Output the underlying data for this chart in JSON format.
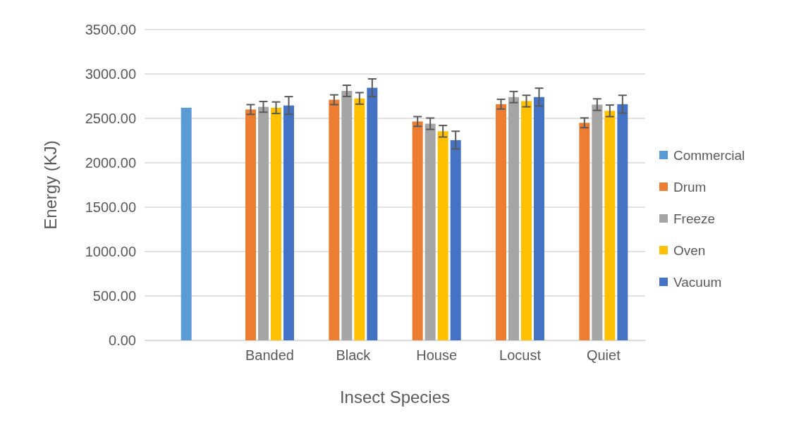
{
  "chart_data": {
    "type": "bar",
    "xlabel": "Insect Species",
    "ylabel": "Energy (KJ)",
    "categories": [
      null,
      "Banded",
      "Black",
      "House",
      "Locust",
      "Quiet"
    ],
    "series": [
      {
        "name": "Commercial",
        "color": "#5b9bd5",
        "values": [
          2620,
          null,
          null,
          null,
          null,
          null
        ]
      },
      {
        "name": "Drum",
        "color": "#ed7d31",
        "values": [
          null,
          2600,
          2710,
          2465,
          2660,
          2450
        ],
        "errors": [
          null,
          55,
          55,
          55,
          55,
          55
        ]
      },
      {
        "name": "Freeze",
        "color": "#a5a5a5",
        "values": [
          null,
          2630,
          2810,
          2440,
          2740,
          2655
        ],
        "errors": [
          null,
          60,
          63,
          64,
          63,
          65
        ]
      },
      {
        "name": "Oven",
        "color": "#ffc000",
        "values": [
          null,
          2620,
          2725,
          2355,
          2695,
          2585
        ],
        "errors": [
          null,
          65,
          65,
          65,
          65,
          65
        ]
      },
      {
        "name": "Vacuum",
        "color": "#4472c4",
        "values": [
          null,
          2645,
          2845,
          2255,
          2740,
          2660
        ],
        "errors": [
          null,
          100,
          100,
          100,
          100,
          100
        ]
      }
    ],
    "ylim": [
      0,
      3500
    ],
    "yticks": [
      {
        "value": 0,
        "label": "0.00"
      },
      {
        "value": 500,
        "label": "500.00"
      },
      {
        "value": 1000,
        "label": "1000.00"
      },
      {
        "value": 1500,
        "label": "1500.00"
      },
      {
        "value": 2000,
        "label": "2000.00"
      },
      {
        "value": 2500,
        "label": "2500.00"
      },
      {
        "value": 3000,
        "label": "3000.00"
      },
      {
        "value": 3500,
        "label": "3500.00"
      }
    ],
    "grid": "y",
    "legend": "right"
  }
}
